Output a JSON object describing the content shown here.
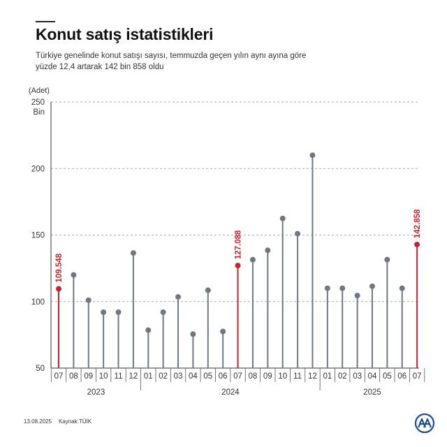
{
  "header": {
    "title": "Konut satış istatistikleri",
    "subtitle": "Türkiye genelinde konut satışı sayısı, temmuzda geçen yılın aynı ayına göre yüzde 12,4 artarak 142 bin 858 oldu"
  },
  "footer": {
    "date": "13.08.2025",
    "source": "Kaynak:TÜİK"
  },
  "colors": {
    "normal": "#6e7783",
    "highlight": "#c8202f",
    "grid": "#a9a9a9",
    "axis": "#333333"
  },
  "chart_data": {
    "type": "lollipop",
    "y_unit_label": "(Adet)",
    "y_ticks": [
      {
        "value": 50,
        "label": "50"
      },
      {
        "value": 100,
        "label": "100"
      },
      {
        "value": 150,
        "label": "150"
      },
      {
        "value": 200,
        "label": "200"
      },
      {
        "value": 250,
        "label": "250",
        "sublabel": "Bin"
      }
    ],
    "ylim": [
      50,
      250
    ],
    "grid": true,
    "year_groups": [
      {
        "label": "2023",
        "from": 0,
        "to": 5
      },
      {
        "label": "2024",
        "from": 6,
        "to": 17
      },
      {
        "label": "2025",
        "from": 18,
        "to": 24
      }
    ],
    "months": [
      "07",
      "08",
      "09",
      "10",
      "11",
      "12",
      "01",
      "02",
      "03",
      "04",
      "05",
      "06",
      "07",
      "08",
      "09",
      "10",
      "11",
      "12",
      "01",
      "02",
      "03",
      "04",
      "05",
      "06",
      "07"
    ],
    "values": [
      109.548,
      120,
      101,
      92,
      92,
      136.5,
      78.5,
      92,
      103.5,
      75.5,
      108.5,
      77.5,
      127.088,
      131.5,
      138.5,
      162.5,
      151,
      210,
      110,
      110,
      104.5,
      111.5,
      131.5,
      110,
      142.858
    ],
    "highlight_indices": [
      0,
      12,
      24
    ],
    "data_labels": [
      {
        "index": 0,
        "text": "109.548"
      },
      {
        "index": 12,
        "text": "127.088"
      },
      {
        "index": 24,
        "text": "142.858"
      }
    ]
  }
}
